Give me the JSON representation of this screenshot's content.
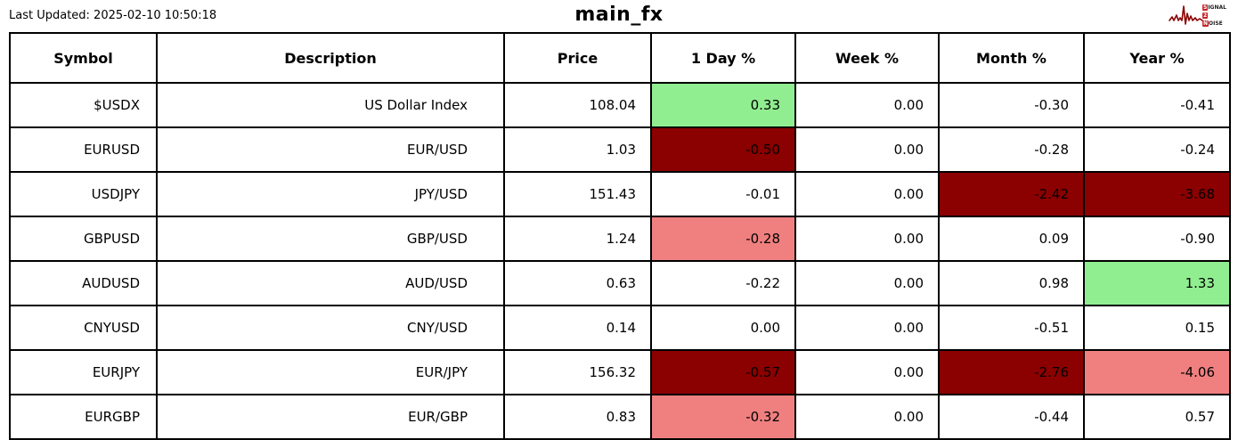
{
  "header": {
    "last_updated": "Last Updated: 2025-02-10 10:50:18",
    "title": "main_fx",
    "logo": {
      "line1_badge": "S",
      "line1_rest": "IGNAL",
      "line2_badge": "2",
      "line3_badge": "N",
      "line3_rest": "OISE"
    }
  },
  "colors": {
    "highlight": {
      "pos": "#90EE90",
      "neg": "#8B0000",
      "mild": "#F08080"
    },
    "logo_wave": "#8B0000",
    "logo_badge": "#c3272b",
    "border": "#000000"
  },
  "table": {
    "columns": [
      "Symbol",
      "Description",
      "Price",
      "1 Day %",
      "Week %",
      "Month %",
      "Year %"
    ],
    "rows": [
      {
        "symbol": "$USDX",
        "description": "US Dollar Index",
        "price": "108.04",
        "day": "0.33",
        "week": "0.00",
        "month": "-0.30",
        "year": "-0.41",
        "hl": {
          "day": "pos"
        }
      },
      {
        "symbol": "EURUSD",
        "description": "EUR/USD",
        "price": "1.03",
        "day": "-0.50",
        "week": "0.00",
        "month": "-0.28",
        "year": "-0.24",
        "hl": {
          "day": "neg"
        }
      },
      {
        "symbol": "USDJPY",
        "description": "JPY/USD",
        "price": "151.43",
        "day": "-0.01",
        "week": "0.00",
        "month": "-2.42",
        "year": "-3.68",
        "hl": {
          "month": "neg",
          "year": "neg"
        }
      },
      {
        "symbol": "GBPUSD",
        "description": "GBP/USD",
        "price": "1.24",
        "day": "-0.28",
        "week": "0.00",
        "month": "0.09",
        "year": "-0.90",
        "hl": {
          "day": "mild"
        }
      },
      {
        "symbol": "AUDUSD",
        "description": "AUD/USD",
        "price": "0.63",
        "day": "-0.22",
        "week": "0.00",
        "month": "0.98",
        "year": "1.33",
        "hl": {
          "year": "pos"
        }
      },
      {
        "symbol": "CNYUSD",
        "description": "CNY/USD",
        "price": "0.14",
        "day": "0.00",
        "week": "0.00",
        "month": "-0.51",
        "year": "0.15",
        "hl": {}
      },
      {
        "symbol": "EURJPY",
        "description": "EUR/JPY",
        "price": "156.32",
        "day": "-0.57",
        "week": "0.00",
        "month": "-2.76",
        "year": "-4.06",
        "hl": {
          "day": "neg",
          "month": "neg",
          "year": "mild"
        }
      },
      {
        "symbol": "EURGBP",
        "description": "EUR/GBP",
        "price": "0.83",
        "day": "-0.32",
        "week": "0.00",
        "month": "-0.44",
        "year": "0.57",
        "hl": {
          "day": "mild"
        }
      }
    ]
  }
}
